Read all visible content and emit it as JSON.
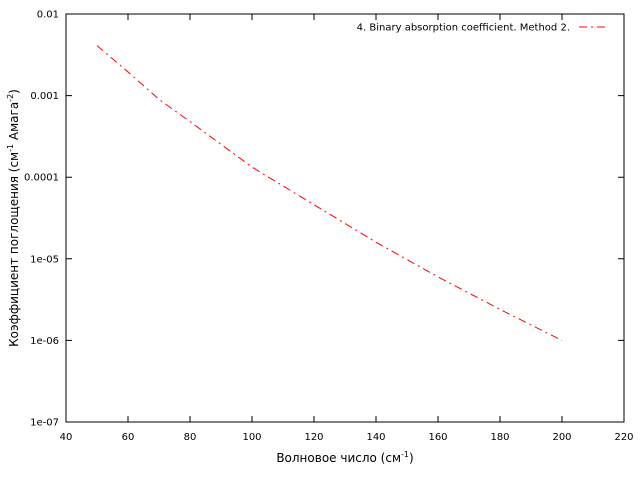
{
  "chart_data": {
    "type": "line",
    "xlabel": {
      "text": "Волновое число (см",
      "sup": "-1",
      "end": ")"
    },
    "ylabel": {
      "text": "Коэффициент поглощения (см",
      "sup1": "-1",
      "mid": " Амага",
      "sup2": "-2",
      "end": ")"
    },
    "x": [
      50,
      60,
      70,
      80,
      100,
      120,
      140,
      160,
      180,
      200
    ],
    "series": [
      {
        "name": "4. Binary absorption coefficient. Method 2.",
        "color": "#ff0000",
        "values": [
          0.0041,
          0.00195,
          0.0009,
          0.00048,
          0.000133,
          4.6e-05,
          1.6e-05,
          6e-06,
          2.4e-06,
          1e-06
        ]
      }
    ],
    "xlim": [
      40,
      220
    ],
    "xticks": [
      40,
      60,
      80,
      100,
      120,
      140,
      160,
      180,
      200,
      220
    ],
    "ylim": [
      1e-07,
      0.01
    ],
    "log_y": true,
    "yticks": [
      {
        "value": 1e-07,
        "label": "1e-07"
      },
      {
        "value": 1e-06,
        "label": "1e-06"
      },
      {
        "value": 1e-05,
        "label": "1e-05"
      },
      {
        "value": 0.0001,
        "label": "0.0001"
      },
      {
        "value": 0.001,
        "label": "0.001"
      },
      {
        "value": 0.01,
        "label": "0.01"
      }
    ],
    "legend": "top-right",
    "line_style": "dash-dot"
  }
}
